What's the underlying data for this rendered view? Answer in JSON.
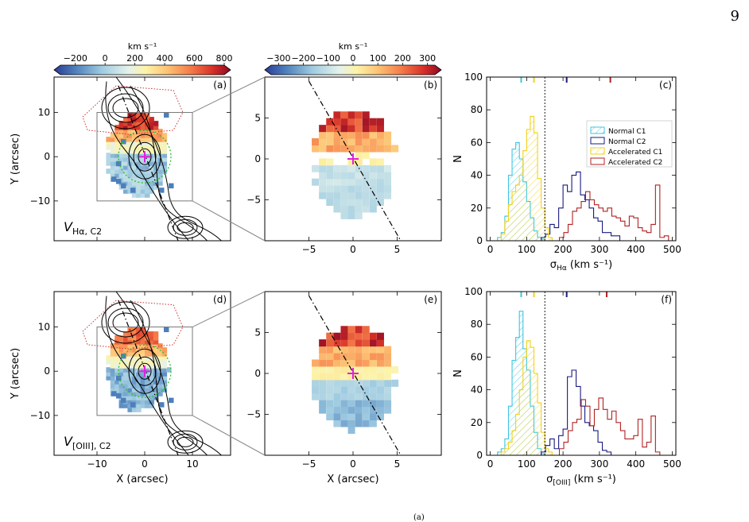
{
  "page_number": "9",
  "footnote": "(a)",
  "figure": {
    "colorbar_unit": "km s⁻¹",
    "colorbars": [
      {
        "ticks": [
          "−200",
          "0",
          "200",
          "400",
          "600",
          "800"
        ],
        "range": [
          -300,
          800
        ],
        "tick_values": [
          -200,
          0,
          200,
          400,
          600,
          800
        ]
      },
      {
        "ticks": [
          "−300",
          "−200",
          "−100",
          "0",
          "100",
          "200",
          "300"
        ],
        "range": [
          -330,
          330
        ],
        "tick_values": [
          -300,
          -200,
          -100,
          0,
          100,
          200,
          300
        ]
      }
    ],
    "panels": {
      "a": {
        "label": "(a)",
        "map_label": "V",
        "map_sub": "Hα, C2"
      },
      "b": {
        "label": "(b)"
      },
      "d": {
        "label": "(d)",
        "map_label": "V",
        "map_sub": "[OIII], C2"
      },
      "e": {
        "label": "(e)"
      }
    },
    "wide_axes": {
      "xlim": [
        -19,
        18
      ],
      "ylim": [
        -19,
        18
      ],
      "xticks": [
        "−10",
        "0",
        "10"
      ],
      "xtick_values": [
        -10,
        0,
        10
      ],
      "yticks": [
        "−10",
        "0",
        "10"
      ],
      "ytick_values": [
        -10,
        0,
        10
      ],
      "ylabel": "Y (arcsec)",
      "xlabel": "X (arcsec)"
    },
    "zoom_axes": {
      "xlim": [
        -10,
        10
      ],
      "ylim": [
        -10,
        10
      ],
      "xticks": [
        "−5",
        "0",
        "5"
      ],
      "xtick_values": [
        -5,
        0,
        5
      ],
      "yticks": [
        "−5",
        "0",
        "5"
      ],
      "ytick_values": [
        -5,
        0,
        5
      ],
      "xlabel": "X (arcsec)"
    }
  },
  "colors": {
    "normal_c1": "#3fc6e0",
    "normal_c2": "#1a1a80",
    "accel_c1": "#f2d21c",
    "accel_c2": "#b22222",
    "magenta": "#e020e0",
    "green": "#2bbf2b"
  },
  "chart_data": [
    {
      "panel": "(c)",
      "type": "histogram",
      "xlabel_sym": "σ",
      "xlabel_sub": "Hα",
      "xlabel_unit": " (km s⁻¹)",
      "ylabel": "N",
      "xlim": [
        -10,
        510
      ],
      "ylim": [
        0,
        100
      ],
      "xticks": [
        0,
        100,
        200,
        300,
        400,
        500
      ],
      "yticks": [
        0,
        20,
        40,
        60,
        80,
        100
      ],
      "threshold_line": 150,
      "legend_position": "upper-right",
      "top_markers": [
        {
          "series": "Normal C1",
          "x": 85
        },
        {
          "series": "Accelerated C1",
          "x": 120
        },
        {
          "series": "Normal C2",
          "x": 210
        },
        {
          "series": "Accelerated C2",
          "x": 330
        }
      ],
      "series": [
        {
          "name": "Normal C1",
          "bin_width": 10,
          "bin_start": 20,
          "values": [
            2,
            5,
            15,
            40,
            56,
            60,
            50,
            36,
            24,
            14,
            6,
            2,
            1,
            0
          ]
        },
        {
          "name": "Normal C2",
          "bin_width": 12,
          "bin_start": 140,
          "values": [
            2,
            4,
            10,
            8,
            20,
            34,
            30,
            40,
            42,
            28,
            25,
            20,
            14,
            12,
            5,
            5,
            3,
            3,
            0
          ]
        },
        {
          "name": "Accelerated C1",
          "bin_width": 10,
          "bin_start": 30,
          "values": [
            4,
            12,
            22,
            30,
            34,
            40,
            55,
            68,
            76,
            66,
            38,
            20,
            8,
            2
          ]
        },
        {
          "name": "Accelerated C2",
          "bin_width": 12,
          "bin_start": 190,
          "values": [
            2,
            5,
            10,
            18,
            20,
            24,
            30,
            25,
            22,
            20,
            18,
            20,
            15,
            14,
            12,
            9,
            15,
            14,
            8,
            6,
            5,
            10,
            34,
            2,
            3
          ]
        }
      ]
    },
    {
      "panel": "(f)",
      "type": "histogram",
      "xlabel_sym": "σ",
      "xlabel_sub": "[OIII]",
      "xlabel_unit": " (km s⁻¹)",
      "ylabel": "N",
      "xlim": [
        -10,
        510
      ],
      "ylim": [
        0,
        100
      ],
      "xticks": [
        0,
        100,
        200,
        300,
        400,
        500
      ],
      "yticks": [
        0,
        20,
        40,
        60,
        80,
        100
      ],
      "threshold_line": 150,
      "top_markers": [
        {
          "series": "Normal C1",
          "x": 85
        },
        {
          "series": "Accelerated C1",
          "x": 120
        },
        {
          "series": "Normal C2",
          "x": 210
        },
        {
          "series": "Accelerated C2",
          "x": 320
        }
      ],
      "series": [
        {
          "name": "Normal C1",
          "bin_width": 10,
          "bin_start": 20,
          "values": [
            2,
            4,
            10,
            30,
            58,
            72,
            88,
            65,
            52,
            30,
            14,
            4,
            1,
            0
          ]
        },
        {
          "name": "Normal C2",
          "bin_width": 12,
          "bin_start": 140,
          "values": [
            2,
            6,
            10,
            4,
            12,
            16,
            48,
            52,
            42,
            30,
            20,
            18,
            15,
            8,
            3,
            2,
            0
          ]
        },
        {
          "name": "Accelerated C1",
          "bin_width": 10,
          "bin_start": 30,
          "values": [
            2,
            4,
            8,
            15,
            25,
            40,
            60,
            70,
            66,
            50,
            32,
            14,
            4,
            2
          ]
        },
        {
          "name": "Accelerated C2",
          "bin_width": 12,
          "bin_start": 190,
          "values": [
            4,
            8,
            15,
            20,
            22,
            34,
            30,
            18,
            28,
            35,
            28,
            22,
            27,
            20,
            15,
            10,
            10,
            12,
            22,
            5,
            8,
            24,
            2
          ]
        }
      ]
    }
  ]
}
